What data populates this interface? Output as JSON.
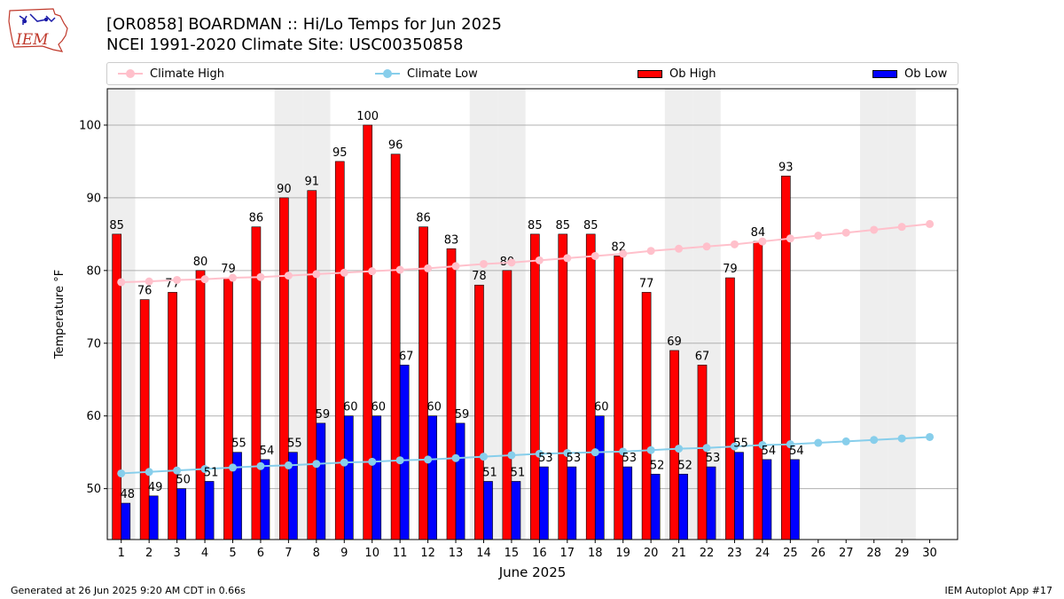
{
  "header": {
    "title_line1": "[OR0858] BOARDMAN :: Hi/Lo Temps for Jun 2025",
    "title_line2": "NCEI 1991-2020 Climate Site: USC00350858"
  },
  "logo": {
    "text": "IEM"
  },
  "legend": {
    "items": [
      {
        "label": "Climate High",
        "kind": "line",
        "color": "#ffc0cb"
      },
      {
        "label": "Climate Low",
        "kind": "line",
        "color": "#87ceeb"
      },
      {
        "label": "Ob High",
        "kind": "bar",
        "color": "#ff0000"
      },
      {
        "label": "Ob Low",
        "kind": "bar",
        "color": "#0000ff"
      }
    ]
  },
  "footer": {
    "left": "Generated at 26 Jun 2025 9:20 AM CDT in 0.66s",
    "right": "IEM Autoplot App #17"
  },
  "chart_data": {
    "type": "bar",
    "xlabel": "June 2025",
    "ylabel": "Temperature °F",
    "ylim": [
      43,
      105
    ],
    "yticks": [
      50,
      60,
      70,
      80,
      90,
      100
    ],
    "grid": true,
    "legend_position": "top",
    "categories": [
      "1",
      "2",
      "3",
      "4",
      "5",
      "6",
      "7",
      "8",
      "9",
      "10",
      "11",
      "12",
      "13",
      "14",
      "15",
      "16",
      "17",
      "18",
      "19",
      "20",
      "21",
      "22",
      "23",
      "24",
      "25",
      "26",
      "27",
      "28",
      "29",
      "30"
    ],
    "weekend_days": [
      1,
      7,
      8,
      14,
      15,
      21,
      22,
      28,
      29
    ],
    "series": [
      {
        "name": "Ob High",
        "type": "bar",
        "color": "#ff0000",
        "values": [
          85,
          76,
          77,
          80,
          79,
          86,
          90,
          91,
          95,
          100,
          96,
          86,
          83,
          78,
          80,
          85,
          85,
          85,
          82,
          77,
          69,
          67,
          79,
          84,
          93,
          null,
          null,
          null,
          null,
          null
        ]
      },
      {
        "name": "Ob Low",
        "type": "bar",
        "color": "#0000ff",
        "values": [
          48,
          49,
          50,
          51,
          55,
          54,
          55,
          59,
          60,
          60,
          67,
          60,
          59,
          51,
          51,
          53,
          53,
          60,
          53,
          52,
          52,
          53,
          55,
          54,
          54,
          null,
          null,
          null,
          null,
          null
        ]
      },
      {
        "name": "Climate High",
        "type": "line",
        "color": "#ffc0cb",
        "values": [
          78.4,
          78.5,
          78.7,
          78.8,
          79.0,
          79.1,
          79.3,
          79.5,
          79.7,
          79.9,
          80.1,
          80.3,
          80.6,
          80.9,
          81.1,
          81.4,
          81.7,
          82.0,
          82.3,
          82.7,
          83.0,
          83.3,
          83.6,
          84.0,
          84.4,
          84.8,
          85.2,
          85.6,
          86.0,
          86.4
        ]
      },
      {
        "name": "Climate Low",
        "type": "line",
        "color": "#87ceeb",
        "values": [
          52.1,
          52.3,
          52.5,
          52.7,
          52.9,
          53.1,
          53.2,
          53.4,
          53.6,
          53.7,
          53.9,
          54.0,
          54.2,
          54.4,
          54.6,
          54.8,
          54.9,
          55.0,
          55.1,
          55.3,
          55.5,
          55.6,
          55.8,
          56.0,
          56.1,
          56.3,
          56.5,
          56.7,
          56.9,
          57.1
        ]
      }
    ]
  }
}
